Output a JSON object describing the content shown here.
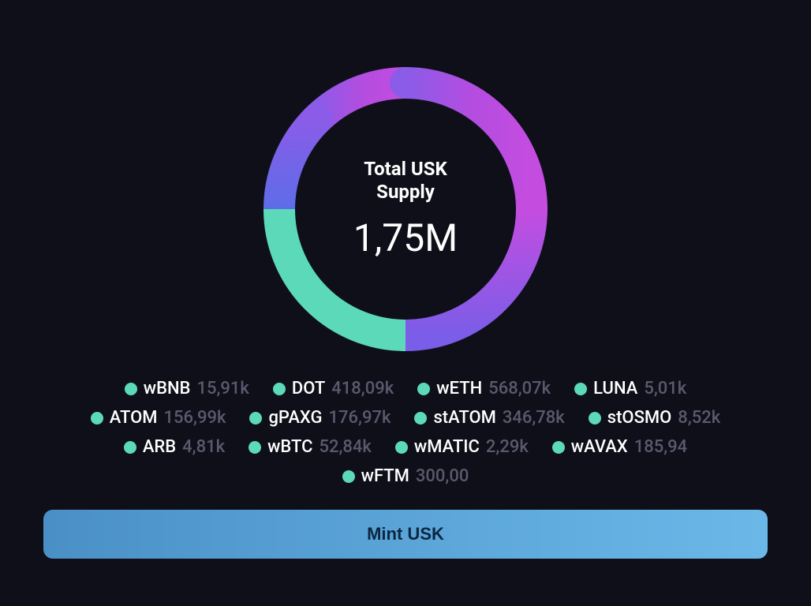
{
  "chart": {
    "type": "donut",
    "title": "Total USK\nSupply",
    "value": "1,75M",
    "background_color": "#0f0f1a",
    "stroke_width": 40,
    "radius": 160,
    "segments": [
      {
        "color_start": "#a655e8",
        "color_end": "#c24de0",
        "fraction": 0.3
      },
      {
        "color_start": "#c24de0",
        "color_end": "#9b5de0",
        "fraction": 0.3
      },
      {
        "color_start": "#6b6fe0",
        "color_end": "#5d6de8",
        "fraction": 0.2
      },
      {
        "color_start": "#5cd9b8",
        "color_end": "#5cd9b8",
        "fraction": 0.2
      }
    ],
    "title_color": "#ffffff",
    "title_fontsize": 24,
    "value_color": "#ffffff",
    "value_fontsize": 48
  },
  "legend": {
    "dot_color": "#5cd9b8",
    "label_color": "#ffffff",
    "value_color": "#5a5a6e",
    "fontsize": 22,
    "items": [
      {
        "label": "wBNB",
        "value": "15,91k"
      },
      {
        "label": "DOT",
        "value": "418,09k"
      },
      {
        "label": "wETH",
        "value": "568,07k"
      },
      {
        "label": "LUNA",
        "value": "5,01k"
      },
      {
        "label": "ATOM",
        "value": "156,99k"
      },
      {
        "label": "gPAXG",
        "value": "176,97k"
      },
      {
        "label": "stATOM",
        "value": "346,78k"
      },
      {
        "label": "stOSMO",
        "value": "8,52k"
      },
      {
        "label": "ARB",
        "value": "4,81k"
      },
      {
        "label": "wBTC",
        "value": "52,84k"
      },
      {
        "label": "wMATIC",
        "value": "2,29k"
      },
      {
        "label": "wAVAX",
        "value": "185,94"
      },
      {
        "label": "wFTM",
        "value": "300,00"
      }
    ]
  },
  "button": {
    "label": "Mint USK",
    "gradient_start": "#4a90c7",
    "gradient_end": "#6bb8e8",
    "text_color": "#0b2740"
  }
}
